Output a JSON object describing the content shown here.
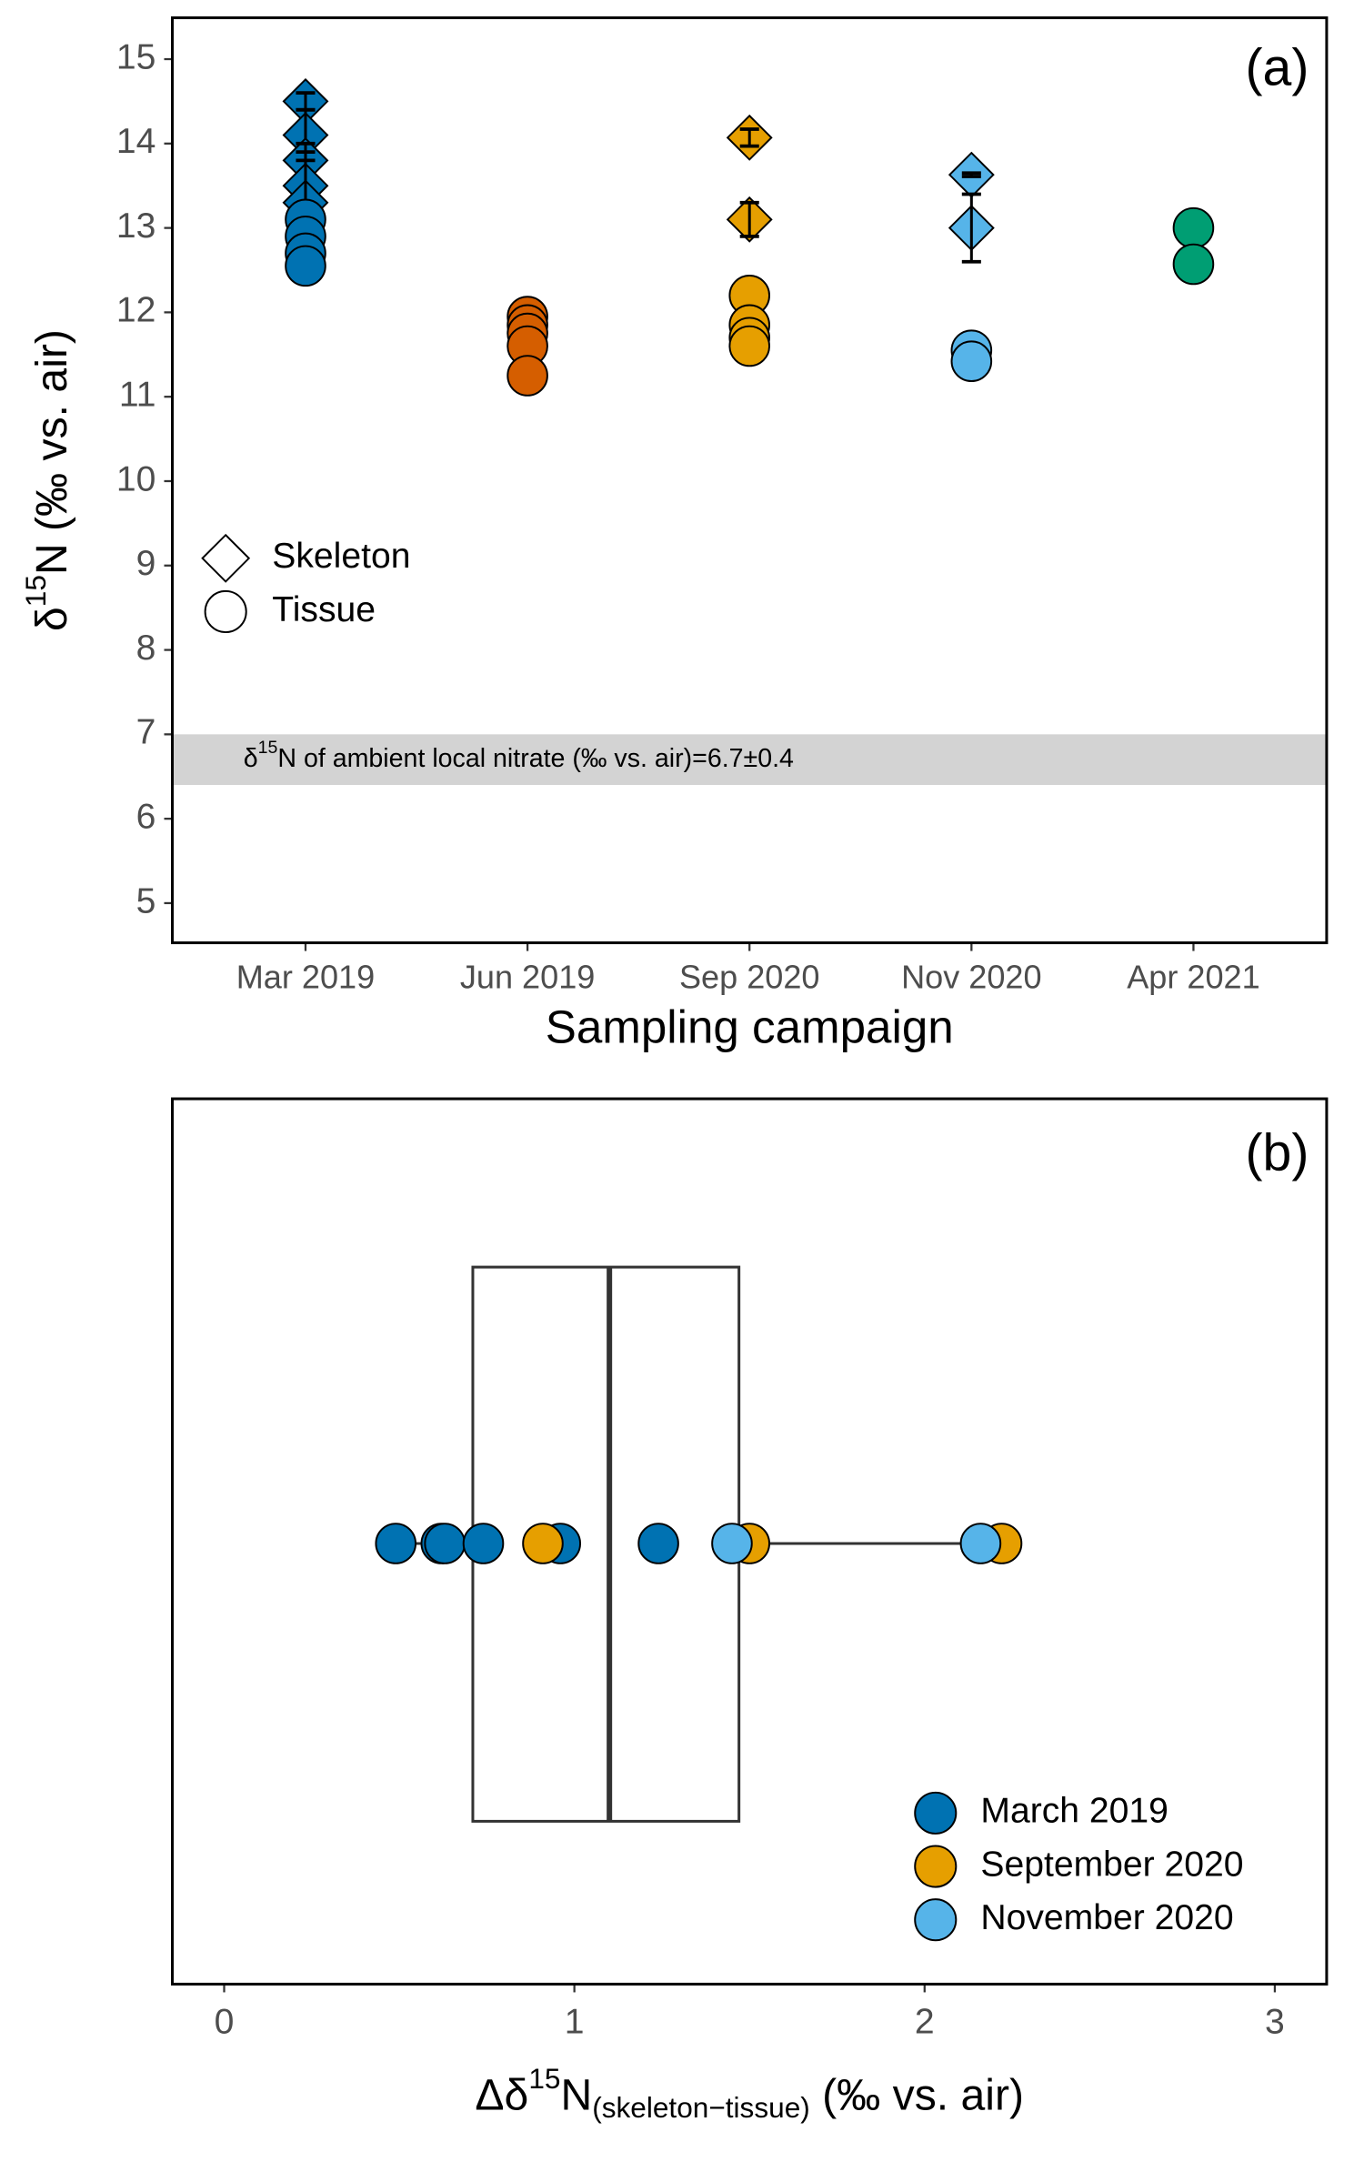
{
  "chart_data": [
    {
      "type": "scatter",
      "panel_label": "(a)",
      "y_label": {
        "prefix": "δ",
        "sup": "15",
        "rest": "N (‰ vs. air)"
      },
      "x_label": "Sampling campaign",
      "categories": [
        "Mar 2019",
        "Jun 2019",
        "Sep 2020",
        "Nov 2020",
        "Apr 2021"
      ],
      "category_colors": [
        "#0072B2",
        "#D55E00",
        "#E69F00",
        "#56B4E9",
        "#009E73"
      ],
      "ylim": [
        4.53,
        15.49
      ],
      "yticks": [
        5,
        6,
        7,
        8,
        9,
        10,
        11,
        12,
        13,
        14,
        15
      ],
      "legend": "left",
      "annotation": {
        "prefix": "δ",
        "sup": "15",
        "rest": "N of ambient local nitrate (‰ vs. air)=6.7±0.4",
        "ymin": 6.4,
        "ymax": 7.0
      },
      "series": [
        {
          "name": "Skeleton",
          "marker": "diamond",
          "x": [
            "Mar 2019",
            "Mar 2019",
            "Mar 2019",
            "Mar 2019",
            "Mar 2019",
            "Sep 2020",
            "Sep 2020",
            "Nov 2020",
            "Nov 2020"
          ],
          "values": [
            14.5,
            14.1,
            13.8,
            13.5,
            13.3,
            14.07,
            13.1,
            13.63,
            13.0
          ],
          "errors": [
            0.1,
            0.3,
            0.2,
            0.3,
            0.6,
            0.1,
            0.2,
            0.02,
            0.4
          ]
        },
        {
          "name": "Tissue",
          "marker": "circle",
          "x": [
            "Mar 2019",
            "Mar 2019",
            "Mar 2019",
            "Mar 2019",
            "Jun 2019",
            "Jun 2019",
            "Jun 2019",
            "Jun 2019",
            "Jun 2019",
            "Sep 2020",
            "Sep 2020",
            "Sep 2020",
            "Sep 2020",
            "Nov 2020",
            "Nov 2020",
            "Apr 2021",
            "Apr 2021"
          ],
          "values": [
            13.1,
            12.9,
            12.7,
            12.55,
            11.95,
            11.85,
            11.75,
            11.6,
            11.25,
            12.2,
            11.85,
            11.7,
            11.6,
            11.55,
            11.42,
            13.0,
            12.57
          ]
        }
      ]
    },
    {
      "type": "box",
      "panel_label": "(b)",
      "x_label": {
        "prefix": "Δδ",
        "sup": "15",
        "mid": "N",
        "sub": "(skeleton−tissue)",
        "rest": " (‰ vs. air)"
      },
      "xlim": [
        -0.148,
        3.148
      ],
      "xticks": [
        0,
        1,
        2,
        3
      ],
      "legend": "bottom-right",
      "box": {
        "min": 0.49,
        "q1": 0.71,
        "median": 1.1,
        "q3": 1.47,
        "max": 2.22
      },
      "series": [
        {
          "name": "March 2019",
          "color": "#0072B2",
          "values": [
            0.49,
            0.62,
            0.63,
            0.74,
            0.96,
            1.24
          ]
        },
        {
          "name": "September 2020",
          "color": "#E69F00",
          "values": [
            0.91,
            1.5,
            2.22
          ]
        },
        {
          "name": "November 2020",
          "color": "#56B4E9",
          "values": [
            1.45,
            2.16
          ]
        }
      ]
    }
  ]
}
